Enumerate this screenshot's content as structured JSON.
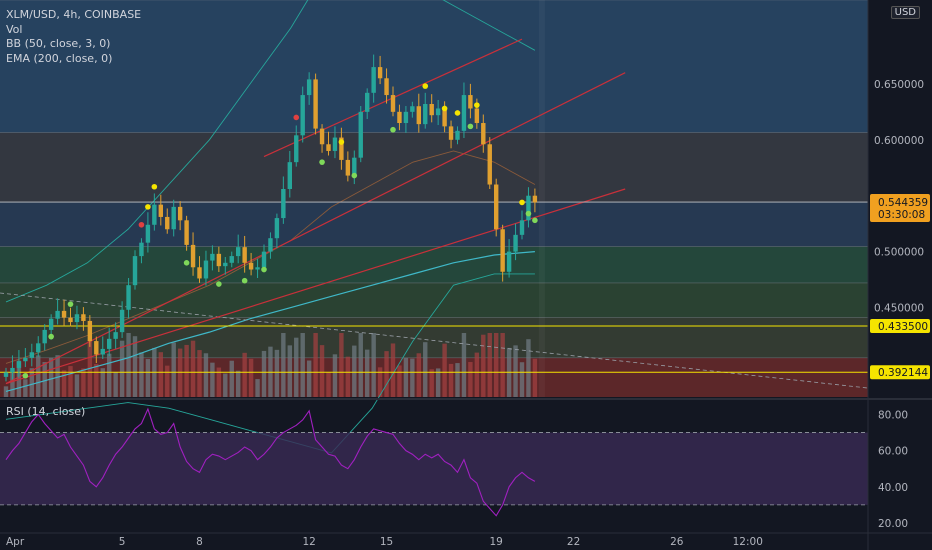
{
  "legend": {
    "symbol": "XLM/USD, 4h, COINBASE",
    "vol": "Vol",
    "bb": "BB (50, close, 3, 0)",
    "ema": "EMA (200, close, 0)",
    "rsi": "RSI (14, close)"
  },
  "currency": "USD",
  "colors": {
    "background": "#131722",
    "up": "#26a69a",
    "down": "#e0a030",
    "bb_line": "#26a69a",
    "ema_line": "#3fb8c8",
    "trend_line": "#c8303a",
    "rsi_line": "#a020c0",
    "rsi_band": "#3a2a55",
    "price_badge": "#f0a020",
    "level_badge": "#f5e400",
    "axis_text": "#b2b5be"
  },
  "chart_data": [
    {
      "type": "candlestick",
      "title": "XLM/USD, 4h, COINBASE",
      "ylim": [
        0.37,
        0.725
      ],
      "price_axis_ticks": [
        "0.650000",
        "0.600000",
        "0.500000",
        "0.450000"
      ],
      "time_axis_ticks": [
        "Apr",
        "5",
        "8",
        "12",
        "15",
        "19",
        "22",
        "26",
        "12:00"
      ],
      "time_axis_index": [
        0,
        18,
        30,
        47,
        59,
        76,
        88,
        104,
        115
      ],
      "last_price": {
        "value": "0.544359",
        "countdown": "03:30:08"
      },
      "price_levels": [
        {
          "value": 0.4335,
          "label": "0.433500"
        },
        {
          "value": 0.392144,
          "label": "0.392144"
        }
      ],
      "zones": [
        {
          "from": 0.6065,
          "to": 0.725,
          "color": "#2a4a6a"
        },
        {
          "from": 0.544,
          "to": 0.6065,
          "color": "#3a3d45"
        },
        {
          "from": 0.5045,
          "to": 0.544,
          "color": "#2a405a"
        },
        {
          "from": 0.472,
          "to": 0.5045,
          "color": "#28503f"
        },
        {
          "from": 0.441,
          "to": 0.472,
          "color": "#2f4a35"
        },
        {
          "from": 0.405,
          "to": 0.441,
          "color": "#3a4235"
        },
        {
          "from": 0.37,
          "to": 0.405,
          "color": "#6a2a2a"
        }
      ],
      "close": [
        0.392,
        0.396,
        0.402,
        0.405,
        0.41,
        0.418,
        0.43,
        0.44,
        0.447,
        0.441,
        0.437,
        0.444,
        0.438,
        0.42,
        0.408,
        0.413,
        0.422,
        0.428,
        0.448,
        0.47,
        0.496,
        0.508,
        0.524,
        0.542,
        0.531,
        0.52,
        0.54,
        0.528,
        0.506,
        0.486,
        0.476,
        0.492,
        0.498,
        0.487,
        0.49,
        0.496,
        0.504,
        0.49,
        0.484,
        0.486,
        0.5,
        0.512,
        0.53,
        0.556,
        0.58,
        0.604,
        0.64,
        0.654,
        0.61,
        0.596,
        0.59,
        0.602,
        0.582,
        0.568,
        0.584,
        0.625,
        0.642,
        0.665,
        0.655,
        0.64,
        0.625,
        0.615,
        0.625,
        0.63,
        0.614,
        0.632,
        0.622,
        0.628,
        0.612,
        0.6,
        0.608,
        0.64,
        0.628,
        0.615,
        0.596,
        0.56,
        0.52,
        0.482,
        0.5,
        0.515,
        0.528,
        0.55,
        0.544
      ],
      "bb_upper": [
        0.455,
        0.47,
        0.49,
        0.52,
        0.56,
        0.6,
        0.65,
        0.7,
        0.76,
        0.76,
        0.74,
        0.72,
        0.7,
        0.68
      ],
      "bb_middle": [
        0.4,
        0.412,
        0.425,
        0.44,
        0.455,
        0.47,
        0.49,
        0.51,
        0.54,
        0.56,
        0.58,
        0.59,
        0.58,
        0.56
      ],
      "bb_lower": [
        0.35,
        0.355,
        0.36,
        0.365,
        0.36,
        0.35,
        0.34,
        0.33,
        0.32,
        0.36,
        0.42,
        0.47,
        0.48,
        0.48
      ],
      "ema200": [
        0.375,
        0.385,
        0.395,
        0.405,
        0.418,
        0.428,
        0.44,
        0.45,
        0.46,
        0.47,
        0.48,
        0.49,
        0.497,
        0.5
      ],
      "trend_lines": [
        {
          "x0": 0,
          "y0": 0.382,
          "x1": 76,
          "y1": 0.502,
          "x_end": 96,
          "y_end": 0.556
        },
        {
          "x0": 0,
          "y0": 0.382,
          "x1": 76,
          "y1": 0.59,
          "x_end": 96,
          "y_end": 0.66
        },
        {
          "x0": 40,
          "y0": 0.585,
          "x1": 58,
          "y1": 0.64,
          "x_end": 80,
          "y_end": 0.69
        }
      ]
    },
    {
      "type": "line",
      "title": "RSI (14, close)",
      "ylim": [
        15,
        88
      ],
      "y_ticks": [
        80,
        60,
        40,
        20
      ],
      "y_tick_labels": [
        "80.00",
        "60.00",
        "40.00",
        "20.00"
      ],
      "upper_band": 70,
      "lower_band": 30,
      "values": [
        55,
        60,
        64,
        70,
        76,
        80,
        75,
        71,
        67,
        69,
        62,
        57,
        52,
        43,
        40,
        45,
        52,
        58,
        62,
        67,
        72,
        75,
        83,
        72,
        69,
        70,
        75,
        62,
        54,
        50,
        48,
        55,
        58,
        57,
        55,
        57,
        59,
        62,
        60,
        55,
        58,
        62,
        67,
        70,
        72,
        74,
        77,
        82,
        66,
        62,
        58,
        57,
        52,
        50,
        55,
        62,
        68,
        72,
        71,
        70,
        69,
        64,
        60,
        58,
        55,
        58,
        56,
        58,
        54,
        52,
        48,
        55,
        45,
        42,
        32,
        28,
        24,
        30,
        40,
        45,
        48,
        45,
        43
      ]
    }
  ]
}
